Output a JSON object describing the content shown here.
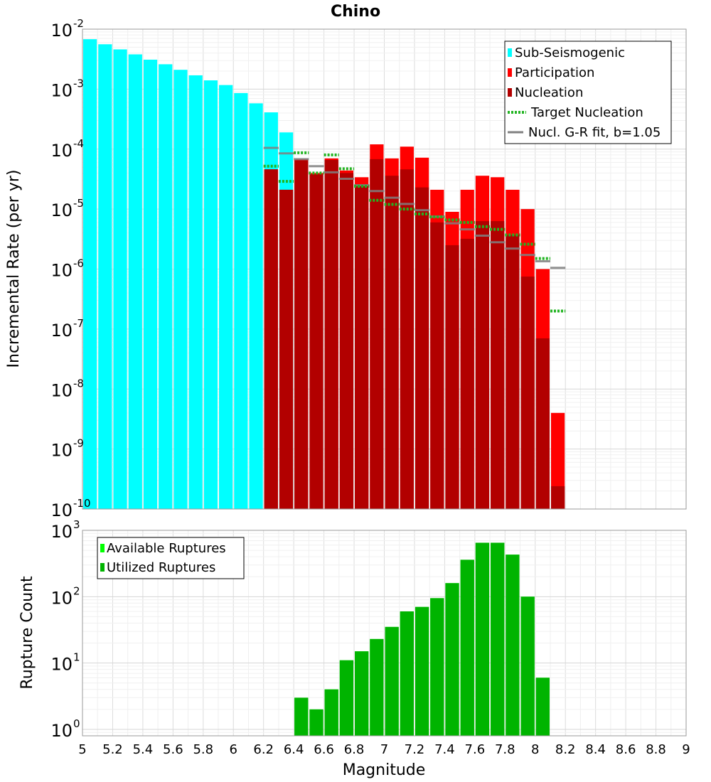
{
  "title": "Chino",
  "x_axis": {
    "label": "Magnitude",
    "range": [
      5,
      9
    ],
    "ticks": [
      "5",
      "5.2",
      "5.4",
      "5.6",
      "5.8",
      "6",
      "6.2",
      "6.4",
      "6.6",
      "6.8",
      "7",
      "7.2",
      "7.4",
      "7.6",
      "7.8",
      "8",
      "8.2",
      "8.4",
      "8.6",
      "8.8",
      "9"
    ]
  },
  "colors": {
    "sub_seismogenic": "#00ffff",
    "participation": "#ff0000",
    "nucleation": "#b20000",
    "target_nucleation": "#22b422",
    "gr_fit": "#808080",
    "available": "#00ff00",
    "utilized": "#00b400"
  },
  "chart_data": [
    {
      "type": "bar",
      "title": "Chino",
      "xlabel": "Magnitude",
      "ylabel": "Incremental Rate (per yr)",
      "yscale": "log",
      "ylim": [
        1e-10,
        0.01
      ],
      "xlim": [
        5,
        9
      ],
      "bin_width": 0.1,
      "grid": true,
      "legend_position": "top-right",
      "y_tick_bases": [
        "10",
        "10",
        "10",
        "10",
        "10",
        "10",
        "10",
        "10",
        "10"
      ],
      "y_tick_exps": [
        "-2",
        "-3",
        "-4",
        "-5",
        "-6",
        "-7",
        "-8",
        "-9",
        "-10"
      ],
      "y_tick_values": [
        0.01,
        0.001,
        0.0001,
        1e-05,
        1e-06,
        1e-07,
        1e-08,
        1e-09,
        1e-10
      ],
      "legend": [
        "Sub-Seismogenic",
        "Participation",
        "Nucleation",
        "Target Nucleation",
        "Nucl. G-R fit, b=1.05"
      ],
      "series": [
        {
          "name": "Sub-Seismogenic",
          "type": "bar",
          "x": [
            5.05,
            5.15,
            5.25,
            5.35,
            5.45,
            5.55,
            5.65,
            5.75,
            5.85,
            5.95,
            6.05,
            6.15,
            6.25,
            6.35,
            6.45
          ],
          "values": [
            0.0068,
            0.0056,
            0.0046,
            0.0038,
            0.0031,
            0.0026,
            0.0021,
            0.0017,
            0.0014,
            0.00117,
            0.00086,
            0.00058,
            0.00041,
            0.00019,
            6.5e-05
          ]
        },
        {
          "name": "Participation",
          "type": "bar",
          "x": [
            6.25,
            6.35,
            6.45,
            6.55,
            6.65,
            6.75,
            6.85,
            6.95,
            7.05,
            7.15,
            7.25,
            7.35,
            7.45,
            7.55,
            7.65,
            7.75,
            7.85,
            7.95,
            8.05,
            8.15
          ],
          "values": [
            4.6e-05,
            2.1e-05,
            6.8e-05,
            4e-05,
            7e-05,
            4.4e-05,
            3.4e-05,
            0.00012,
            7e-05,
            0.00011,
            7.2e-05,
            2.1e-05,
            9e-06,
            2.1e-05,
            3.6e-05,
            3.4e-05,
            2.1e-05,
            1e-05,
            1e-06,
            4e-09
          ]
        },
        {
          "name": "Nucleation",
          "type": "bar",
          "x": [
            6.25,
            6.35,
            6.45,
            6.55,
            6.65,
            6.75,
            6.85,
            6.95,
            7.05,
            7.15,
            7.25,
            7.35,
            7.45,
            7.55,
            7.65,
            7.75,
            7.85,
            7.95,
            8.05,
            8.15
          ],
          "values": [
            4.6e-05,
            2.1e-05,
            6.5e-05,
            3.8e-05,
            6.6e-05,
            4e-05,
            2.6e-05,
            6.8e-05,
            3.6e-05,
            4.6e-05,
            2.3e-05,
            6e-06,
            2.5e-06,
            3.2e-06,
            6.3e-06,
            6.3e-06,
            3.7e-06,
            7.5e-07,
            7e-08,
            2.4e-10
          ]
        },
        {
          "name": "Target Nucleation",
          "type": "step-dotted",
          "x": [
            6.25,
            6.35,
            6.45,
            6.55,
            6.65,
            6.75,
            6.85,
            6.95,
            7.05,
            7.15,
            7.25,
            7.35,
            7.45,
            7.55,
            7.65,
            7.75,
            7.85,
            7.95,
            8.05,
            8.15
          ],
          "values": [
            5.2e-05,
            2.9e-05,
            8.7e-05,
            4e-05,
            8e-05,
            4.7e-05,
            2.4e-05,
            1.4e-05,
            1.2e-05,
            1e-05,
            8.3e-06,
            7.4e-06,
            6.6e-06,
            6e-06,
            5.1e-06,
            4.6e-06,
            3.7e-06,
            2.6e-06,
            1.5e-06,
            2e-07
          ]
        },
        {
          "name": "Nucl. G-R fit, b=1.05",
          "type": "step",
          "x": [
            6.25,
            6.35,
            6.45,
            6.55,
            6.65,
            6.75,
            6.85,
            6.95,
            7.05,
            7.15,
            7.25,
            7.35,
            7.45,
            7.55,
            7.65,
            7.75,
            7.85,
            7.95,
            8.05,
            8.15
          ],
          "values": [
            0.000105,
            8.5e-05,
            6.8e-05,
            5.2e-05,
            4.1e-05,
            3.2e-05,
            2.5e-05,
            2e-05,
            1.55e-05,
            1.22e-05,
            9.6e-06,
            7.5e-06,
            5.8e-06,
            4.6e-06,
            3.6e-06,
            2.8e-06,
            2.2e-06,
            1.72e-06,
            1.35e-06,
            1.05e-06
          ]
        }
      ]
    },
    {
      "type": "bar",
      "xlabel": "Magnitude",
      "ylabel": "Rupture Count",
      "yscale": "log",
      "ylim": [
        0.8,
        1000
      ],
      "xlim": [
        5,
        9
      ],
      "bin_width": 0.1,
      "grid": true,
      "legend_position": "top-left",
      "y_tick_bases": [
        "10",
        "10",
        "10",
        "10"
      ],
      "y_tick_exps": [
        "3",
        "2",
        "1",
        "0"
      ],
      "y_tick_values": [
        1000,
        100,
        10,
        1
      ],
      "legend": [
        "Available Ruptures",
        "Utilized Ruptures"
      ],
      "series": [
        {
          "name": "Available Ruptures",
          "x": [
            6.45,
            6.55,
            6.65,
            6.75,
            6.85,
            6.95,
            7.05,
            7.15,
            7.25,
            7.35,
            7.45,
            7.55,
            7.65,
            7.75,
            7.85,
            7.95,
            8.05
          ],
          "values": [
            3,
            2,
            4,
            11,
            15,
            23,
            35,
            60,
            70,
            95,
            160,
            360,
            650,
            650,
            430,
            100,
            6
          ]
        },
        {
          "name": "Utilized Ruptures",
          "x": [
            6.45,
            6.55,
            6.65,
            6.75,
            6.85,
            6.95,
            7.05,
            7.15,
            7.25,
            7.35,
            7.45,
            7.55,
            7.65,
            7.75,
            7.85,
            7.95,
            8.05
          ],
          "values": [
            3,
            2,
            4,
            11,
            15,
            23,
            35,
            60,
            70,
            95,
            160,
            360,
            650,
            650,
            430,
            100,
            6
          ]
        }
      ]
    }
  ]
}
